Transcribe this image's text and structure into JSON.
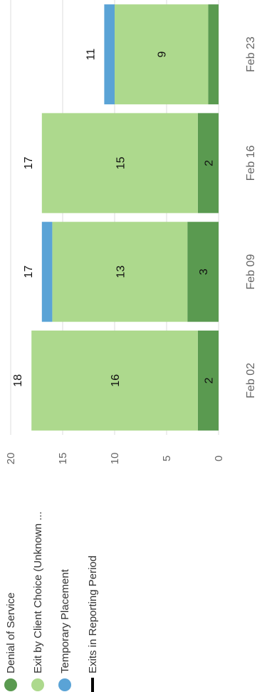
{
  "chart_data": {
    "type": "bar",
    "stacked": true,
    "orientation": "rotated-90",
    "categories": [
      "Feb 02",
      "Feb 09",
      "Feb 16",
      "Feb 23"
    ],
    "series": [
      {
        "name": "Denial of Service",
        "color": "#5a9a50",
        "values": [
          2,
          3,
          2,
          1
        ]
      },
      {
        "name": "Exit by Client Choice (Unknown ...",
        "color": "#add98d",
        "values": [
          16,
          13,
          15,
          9
        ]
      },
      {
        "name": "Temporary Placement",
        "color": "#5aa3d6",
        "values": [
          0,
          1,
          0,
          1
        ]
      }
    ],
    "line_series": {
      "name": "Exits in Reporting Period",
      "color": "#000000"
    },
    "totals": [
      18,
      17,
      17,
      11
    ],
    "segment_labels": [
      [
        "2",
        "16",
        ""
      ],
      [
        "3",
        "13",
        ""
      ],
      [
        "2",
        "15",
        ""
      ],
      [
        "",
        "9",
        ""
      ]
    ],
    "ylim": [
      0,
      20
    ],
    "yticks": [
      0,
      5,
      10,
      15,
      20
    ],
    "grid": true,
    "legend": "top-left"
  }
}
